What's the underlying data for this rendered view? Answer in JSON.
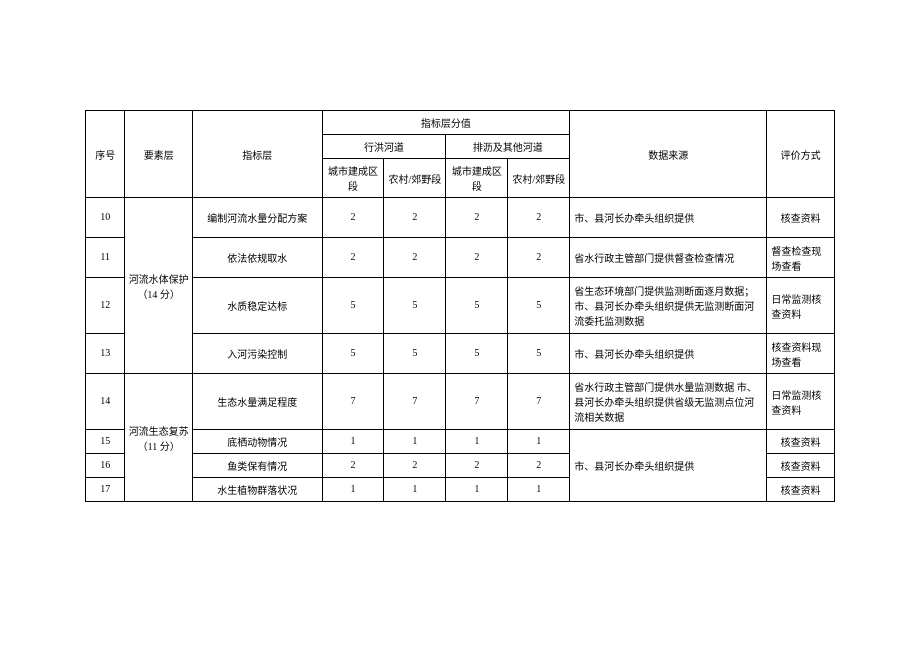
{
  "header": {
    "seq": "序号",
    "element": "要素层",
    "indicator": "指标层",
    "scoreGroup": "指标层分值",
    "channel1": "行洪河道",
    "channel2": "排沥及其他河道",
    "sub1": "城市建成区段",
    "sub2": "农村/郊野段",
    "sub3": "城市建成区段",
    "sub4": "农村/郊野段",
    "source": "数据来源",
    "eval": "评价方式"
  },
  "elements": {
    "e1": "河流水体保护（14 分）",
    "e2": "河流生态复苏（11 分）"
  },
  "rows": {
    "r10": {
      "seq": "10",
      "indicator": "编制河流水量分配方案",
      "s1": "2",
      "s2": "2",
      "s3": "2",
      "s4": "2",
      "source": "市、县河长办牵头组织提供",
      "eval": "核查资料"
    },
    "r11": {
      "seq": "11",
      "indicator": "依法依规取水",
      "s1": "2",
      "s2": "2",
      "s3": "2",
      "s4": "2",
      "source": "省水行政主管部门提供督查检查情况",
      "eval": "督查检查现场查看"
    },
    "r12": {
      "seq": "12",
      "indicator": "水质稳定达标",
      "s1": "5",
      "s2": "5",
      "s3": "5",
      "s4": "5",
      "source": "省生态环境部门提供监测断面逐月数据；市、县河长办牵头组织提供无监测断面河流委托监测数据",
      "eval": "日常监测核查资料"
    },
    "r13": {
      "seq": "13",
      "indicator": "入河污染控制",
      "s1": "5",
      "s2": "5",
      "s3": "5",
      "s4": "5",
      "source": "市、县河长办牵头组织提供",
      "eval": "核查资料现场查看"
    },
    "r14": {
      "seq": "14",
      "indicator": "生态水量满足程度",
      "s1": "7",
      "s2": "7",
      "s3": "7",
      "s4": "7",
      "source": "省水行政主管部门提供水量监测数据 市、县河长办牵头组织提供省级无监测点位河流相关数据",
      "eval": "日常监测核查资料"
    },
    "r15": {
      "seq": "15",
      "indicator": "底栖动物情况",
      "s1": "1",
      "s2": "1",
      "s3": "1",
      "s4": "1",
      "eval": "核查资料"
    },
    "r16": {
      "seq": "16",
      "indicator": "鱼类保有情况",
      "s1": "2",
      "s2": "2",
      "s3": "2",
      "s4": "2",
      "eval": "核查资料"
    },
    "r17": {
      "seq": "17",
      "indicator": "水生植物群落状况",
      "s1": "1",
      "s2": "1",
      "s3": "1",
      "s4": "1",
      "eval": "核查资料"
    },
    "sourceBottom": "市、县河长办牵头组织提供"
  }
}
